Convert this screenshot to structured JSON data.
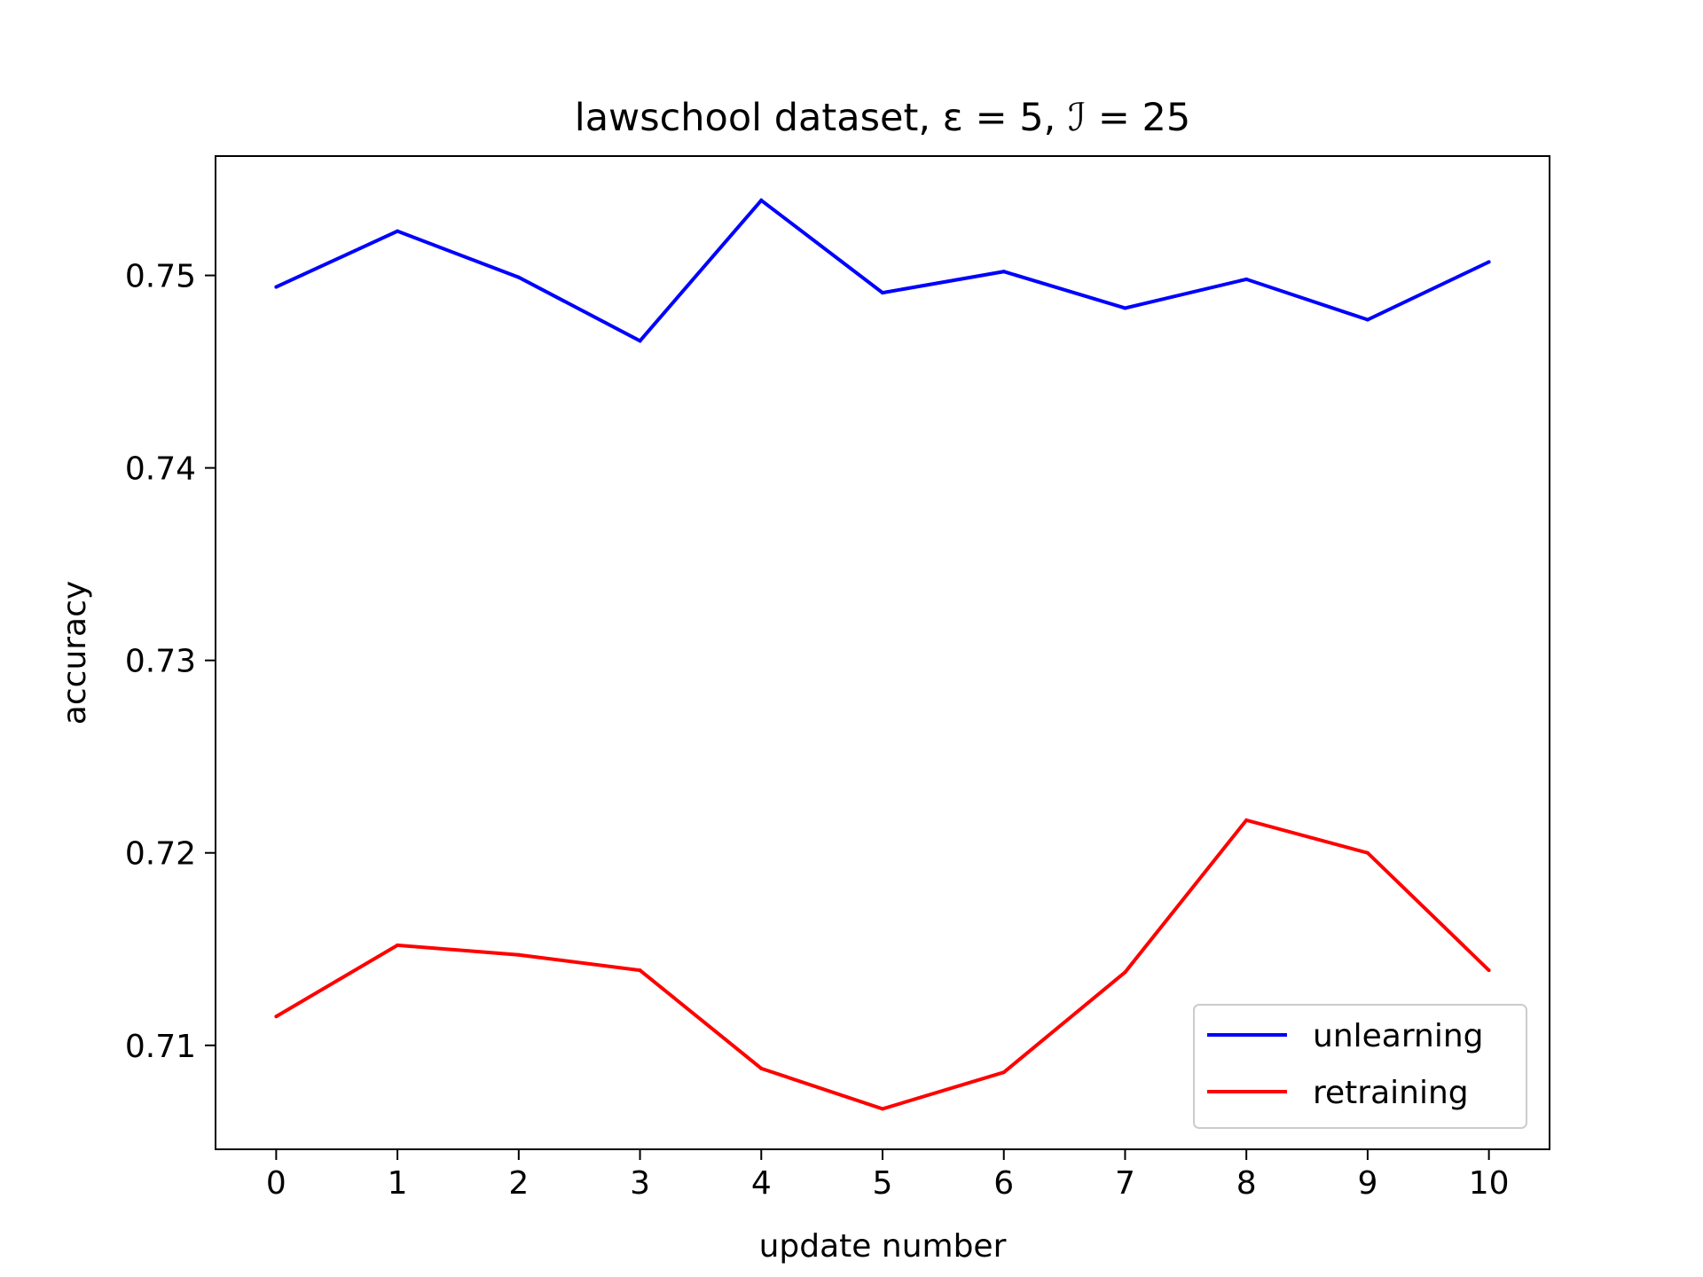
{
  "chart_data": {
    "type": "line",
    "title": "lawschool dataset, ε = 5, ℐ = 25",
    "xlabel": "update number",
    "ylabel": "accuracy",
    "x": [
      0,
      1,
      2,
      3,
      4,
      5,
      6,
      7,
      8,
      9,
      10
    ],
    "xticks": [
      "0",
      "1",
      "2",
      "3",
      "4",
      "5",
      "6",
      "7",
      "8",
      "9",
      "10"
    ],
    "yticks": [
      0.71,
      0.72,
      0.73,
      0.74,
      0.75
    ],
    "ytick_labels": [
      "0.71",
      "0.72",
      "0.73",
      "0.74",
      "0.75"
    ],
    "xlim": [
      -0.5,
      10.5
    ],
    "ylim": [
      0.7046,
      0.7562
    ],
    "grid": false,
    "legend_position": "lower-right",
    "series": [
      {
        "name": "unlearning",
        "color": "#0000ff",
        "values": [
          0.7494,
          0.7523,
          0.7499,
          0.7466,
          0.7539,
          0.7491,
          0.7502,
          0.7483,
          0.7498,
          0.7477,
          0.7507
        ]
      },
      {
        "name": "retraining",
        "color": "#ff0000",
        "values": [
          0.7115,
          0.7152,
          0.7147,
          0.7139,
          0.7088,
          0.7067,
          0.7086,
          0.7138,
          0.7217,
          0.72,
          0.7139
        ]
      }
    ]
  }
}
